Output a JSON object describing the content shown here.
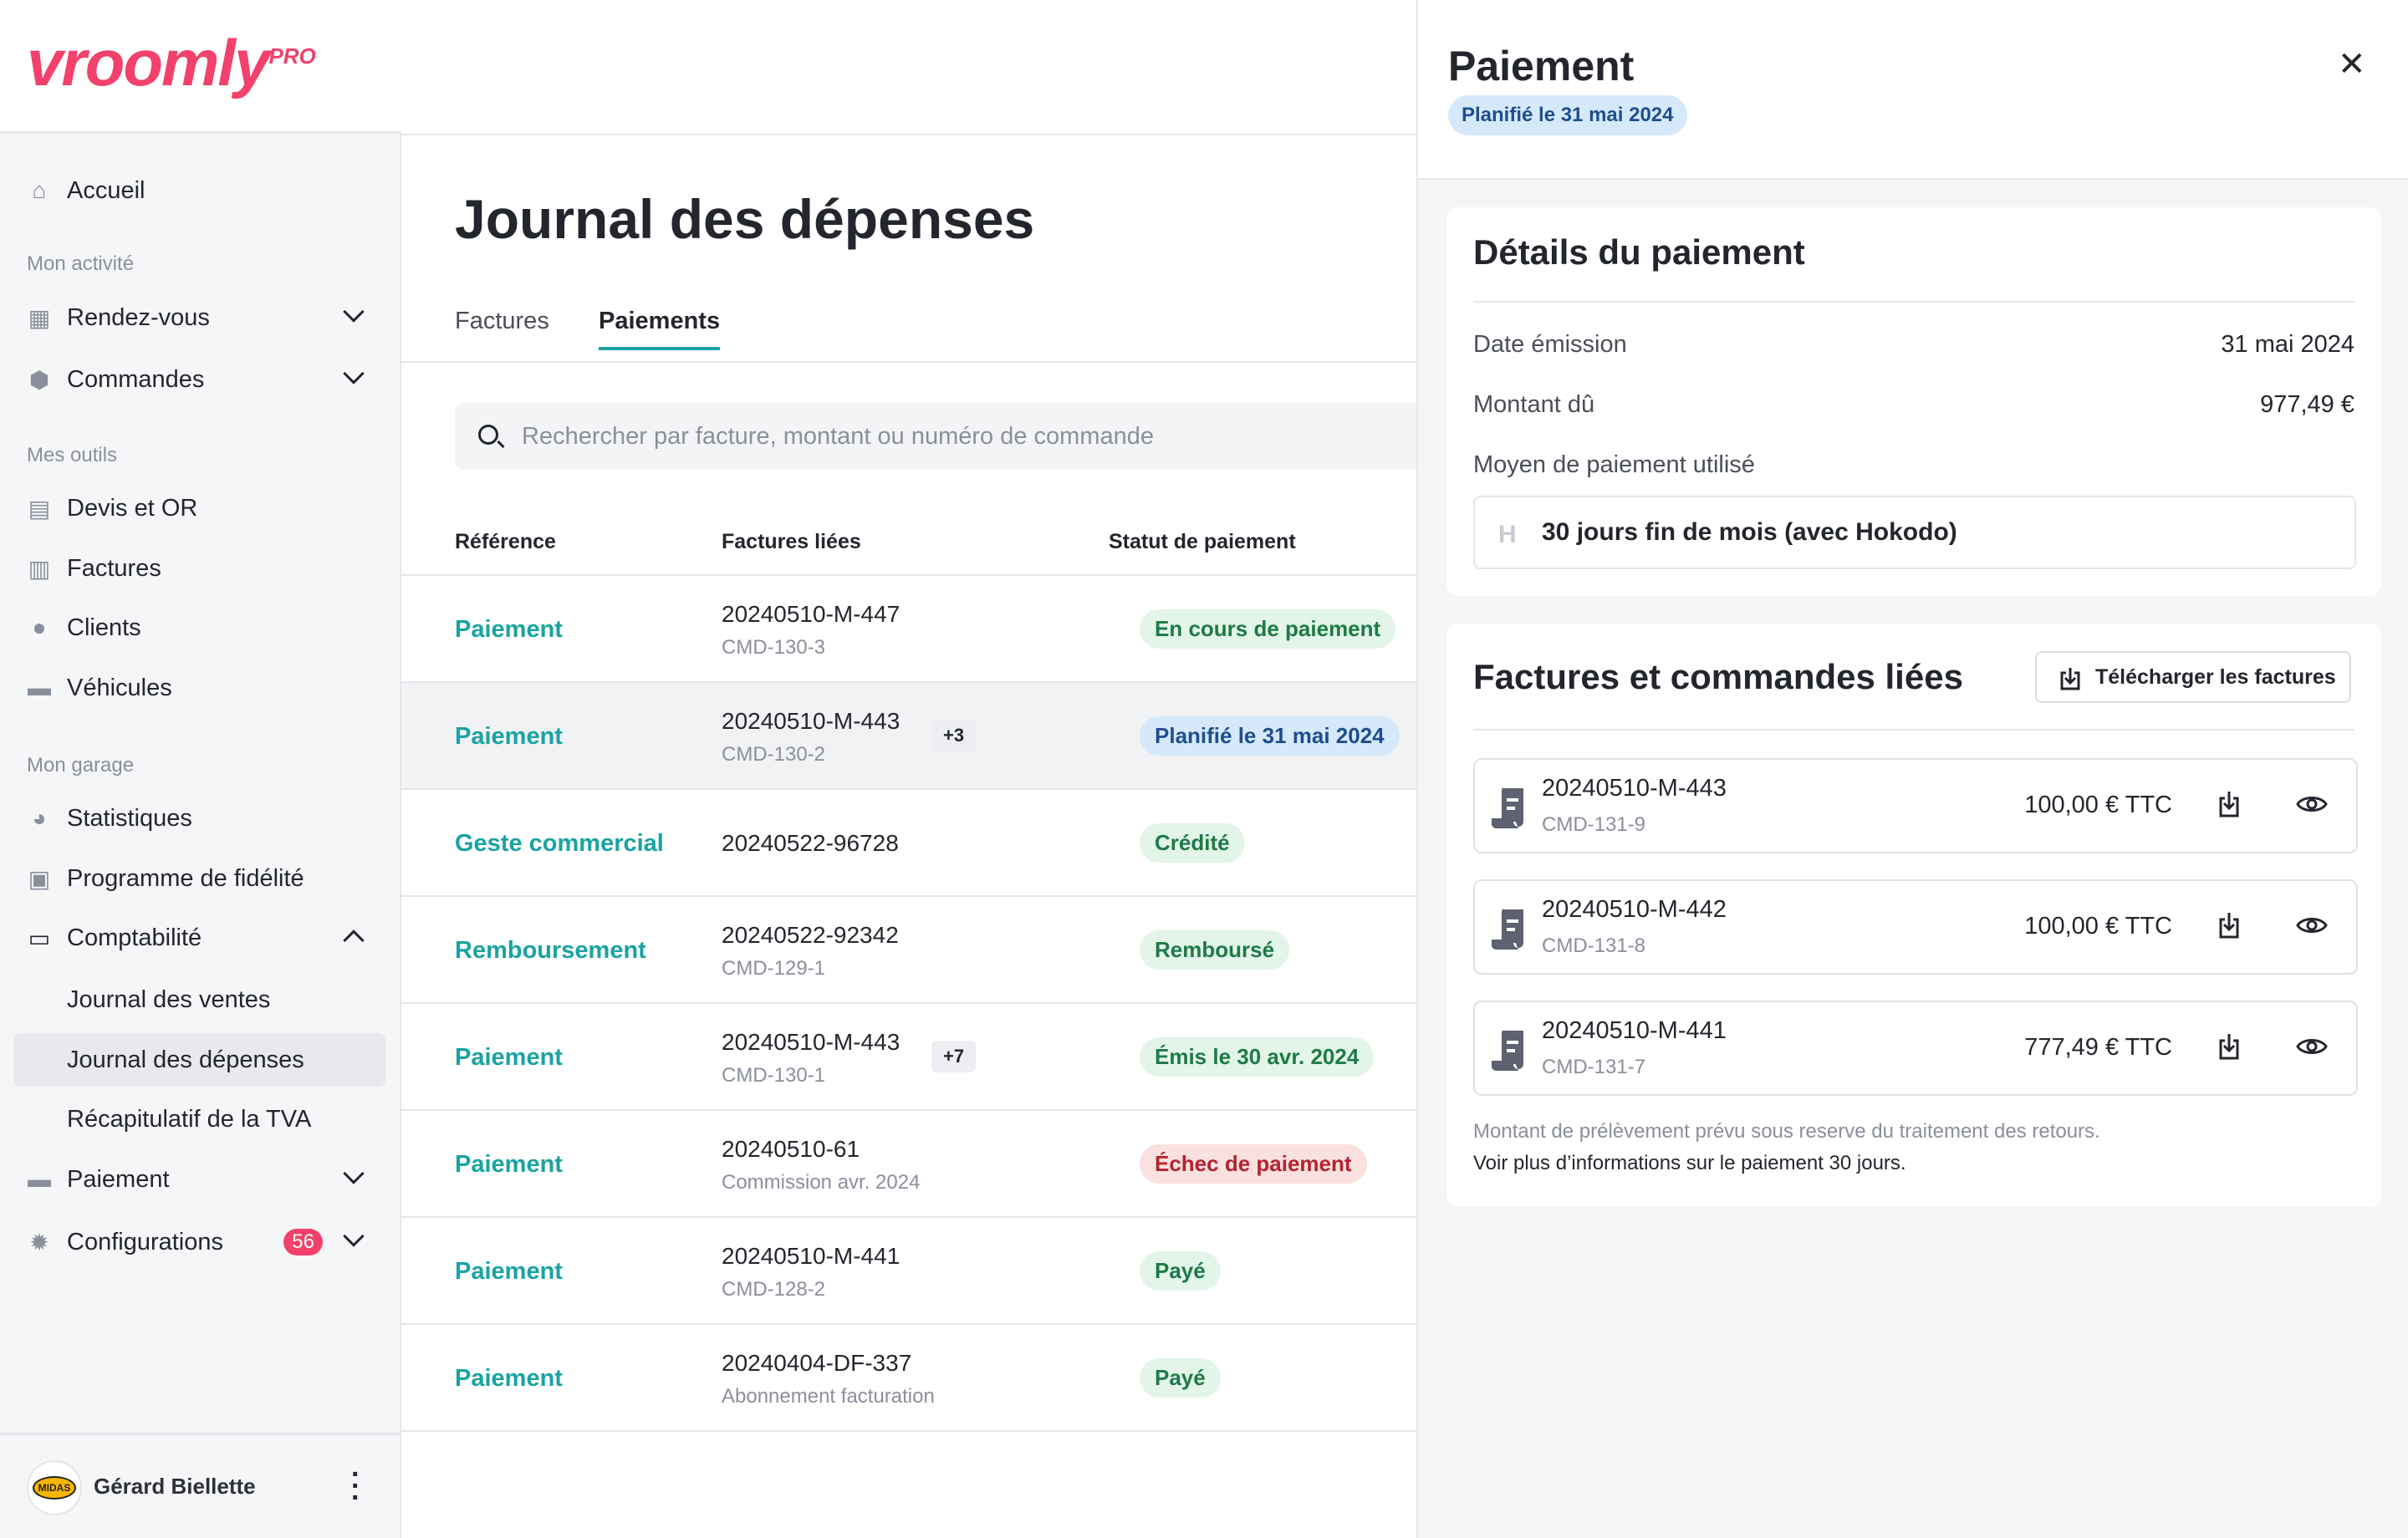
{
  "brand": {
    "name": "vroomly",
    "suffix": "PRO",
    "color": "#f2416b"
  },
  "sidebar": {
    "home": {
      "label": "Accueil",
      "icon": "home-icon"
    },
    "sections": [
      {
        "title": "Mon activité",
        "items": [
          {
            "label": "Rendez-vous",
            "icon": "calendar-icon",
            "expandable": true
          },
          {
            "label": "Commandes",
            "icon": "box-icon",
            "expandable": true
          }
        ]
      },
      {
        "title": "Mes outils",
        "items": [
          {
            "label": "Devis et OR",
            "icon": "document-icon"
          },
          {
            "label": "Factures",
            "icon": "invoice-icon"
          },
          {
            "label": "Clients",
            "icon": "user-icon"
          },
          {
            "label": "Véhicules",
            "icon": "car-icon"
          }
        ]
      },
      {
        "title": "Mon garage",
        "items": [
          {
            "label": "Statistiques",
            "icon": "gauge-icon"
          },
          {
            "label": "Programme de fidélité",
            "icon": "gift-icon"
          },
          {
            "label": "Comptabilité",
            "icon": "folder-icon",
            "expanded": true
          }
        ]
      }
    ],
    "comptabilite_sub": [
      {
        "label": "Journal des ventes"
      },
      {
        "label": "Journal des dépenses",
        "active": true
      },
      {
        "label": "Récapitulatif de la TVA"
      }
    ],
    "after": [
      {
        "label": "Paiement",
        "icon": "card-icon",
        "expandable": true
      },
      {
        "label": "Configurations",
        "icon": "gear-icon",
        "expandable": true,
        "badge": "56"
      }
    ],
    "user": {
      "name": "Gérard Biellette",
      "avatar": "MIDAS"
    }
  },
  "main": {
    "title": "Journal des dépenses",
    "tabs": [
      {
        "label": "Factures"
      },
      {
        "label": "Paiements",
        "active": true
      }
    ],
    "search_placeholder": "Rechercher par facture, montant ou numéro de commande",
    "columns": [
      "Référence",
      "Factures liées",
      "Statut de paiement"
    ],
    "rows": [
      {
        "ref": "Paiement",
        "facture": "20240510-M-447",
        "sub": "CMD-130-3",
        "status": "En cours de paiement",
        "tone": "green"
      },
      {
        "ref": "Paiement",
        "facture": "20240510-M-443",
        "sub": "CMD-130-2",
        "extra": "+3",
        "status": "Planifié le 31 mai 2024",
        "tone": "blue",
        "selected": true
      },
      {
        "ref": "Geste commercial",
        "facture": "20240522-96728",
        "status": "Crédité",
        "tone": "green"
      },
      {
        "ref": "Remboursement",
        "facture": "20240522-92342",
        "sub": "CMD-129-1",
        "status": "Remboursé",
        "tone": "green"
      },
      {
        "ref": "Paiement",
        "facture": "20240510-M-443",
        "sub": "CMD-130-1",
        "extra": "+7",
        "status": "Émis le 30 avr. 2024",
        "tone": "green"
      },
      {
        "ref": "Paiement",
        "facture": "20240510-61",
        "sub": "Commission avr. 2024",
        "status": "Échec de paiement",
        "tone": "red"
      },
      {
        "ref": "Paiement",
        "facture": "20240510-M-441",
        "sub": "CMD-128-2",
        "status": "Payé",
        "tone": "green"
      },
      {
        "ref": "Paiement",
        "facture": "20240404-DF-337",
        "sub": "Abonnement facturation",
        "status": "Payé",
        "tone": "green"
      }
    ]
  },
  "panel": {
    "title": "Paiement",
    "status": "Planifié le 31 mai 2024",
    "details": {
      "title": "Détails du paiement",
      "date_label": "Date émission",
      "date_value": "31 mai 2024",
      "amount_label": "Montant dû",
      "amount_value": "977,49 €",
      "method_label": "Moyen de paiement utilisé",
      "method_value": "30 jours fin de mois (avec Hokodo)"
    },
    "invoices": {
      "title": "Factures et commandes liées",
      "download_all": "Télécharger les factures",
      "items": [
        {
          "number": "20240510-M-443",
          "order": "CMD-131-9",
          "amount": "100,00 € TTC"
        },
        {
          "number": "20240510-M-442",
          "order": "CMD-131-8",
          "amount": "100,00 € TTC"
        },
        {
          "number": "20240510-M-441",
          "order": "CMD-131-7",
          "amount": "777,49 € TTC"
        }
      ],
      "note": "Montant de prélèvement prévu sous reserve du traitement des retours.",
      "link": "Voir plus d’informations sur le paiement 30 jours."
    }
  }
}
